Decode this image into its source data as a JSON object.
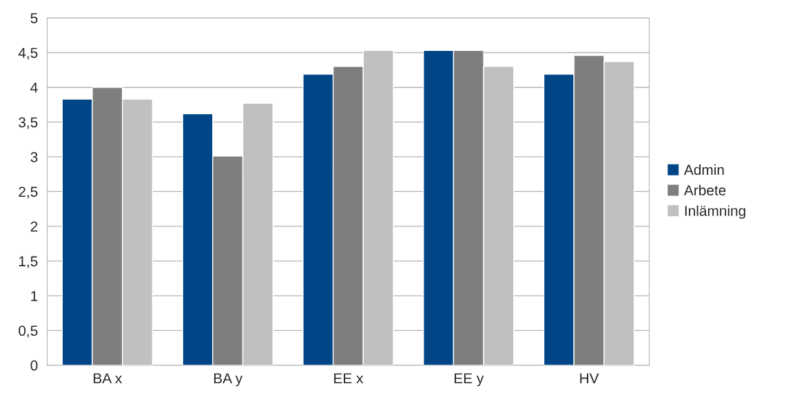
{
  "chart_data": {
    "type": "bar",
    "categories": [
      "BA x",
      "BA y",
      "EE x",
      "EE y",
      "HV"
    ],
    "series": [
      {
        "name": "Admin",
        "color": "#004586",
        "values": [
          3.83,
          3.62,
          4.19,
          4.53,
          4.19
        ]
      },
      {
        "name": "Arbete",
        "color": "#7e7e7e",
        "values": [
          4.0,
          3.01,
          4.3,
          4.53,
          4.46
        ]
      },
      {
        "name": "Inlämning",
        "color": "#c0c0c0",
        "values": [
          3.83,
          3.77,
          4.53,
          4.3,
          4.37
        ]
      }
    ],
    "ylim": [
      0,
      5
    ],
    "yticks": [
      0,
      {
        "value": 0.5,
        "label": "0,5"
      },
      1,
      {
        "value": 1.5,
        "label": "1,5"
      },
      2,
      {
        "value": 2.5,
        "label": "2,5"
      },
      3,
      {
        "value": 3.5,
        "label": "3,5"
      },
      4,
      {
        "value": 4.5,
        "label": "4,5"
      },
      5
    ],
    "grid": "y",
    "legend": "right"
  }
}
